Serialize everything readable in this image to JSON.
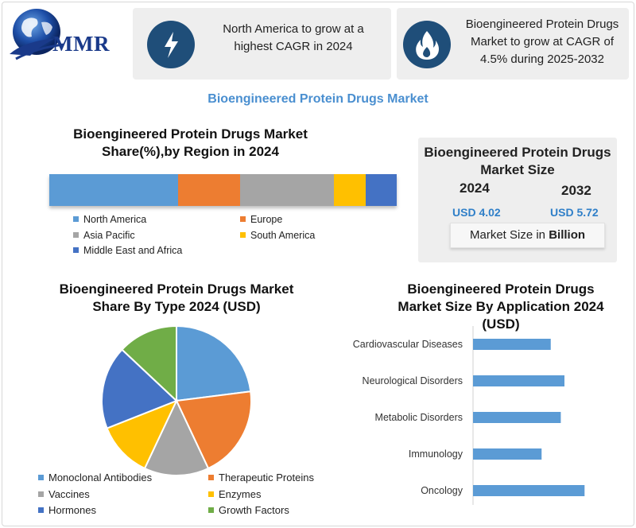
{
  "brand": {
    "logo_text": "MMR"
  },
  "header": {
    "card1_text_lines": [
      "North America to grow at a",
      "highest CAGR in 2024"
    ],
    "card2_text_lines": [
      "Bioengineered Protein Drugs",
      "Market to grow at CAGR of",
      "4.5% during 2025-2032"
    ],
    "card1_icon": "lightning-icon",
    "card2_icon": "flame-icon"
  },
  "main_title": "Bioengineered Protein Drugs Market",
  "colors": {
    "blue": "#5b9bd5",
    "orange": "#ed7d31",
    "gray": "#a5a5a5",
    "yellow": "#ffc000",
    "dark_blue": "#4472c4",
    "green": "#70ad47",
    "accent_text": "#2f7fc8",
    "icon_circle": "#1f4e79"
  },
  "region_section": {
    "title_lines": [
      "Bioengineered Protein Drugs Market",
      "Share(%),by Region in 2024"
    ]
  },
  "market_size": {
    "title_lines": [
      "Bioengineered Protein Drugs",
      "Market Size"
    ],
    "year1": "2024",
    "year2": "2032",
    "value1": "USD 4.02",
    "value2": "USD 5.72",
    "unit_prefix": "Market Size in ",
    "unit_bold": "Billion"
  },
  "type_section": {
    "title_lines": [
      "Bioengineered Protein Drugs Market",
      "Share By Type 2024  (USD)"
    ]
  },
  "application_section": {
    "title_lines": [
      "Bioengineered Protein Drugs",
      "Market Size By Application 2024",
      "(USD)"
    ]
  },
  "chart_data": [
    {
      "type": "bar",
      "orientation": "horizontal-stacked",
      "categories": [
        "North America",
        "Europe",
        "Asia Pacific",
        "South America",
        "Middle East and Africa"
      ],
      "values": [
        37,
        18,
        27,
        9,
        9
      ],
      "unit": "%",
      "legend_position": "bottom"
    },
    {
      "type": "pie",
      "labels": [
        "Monoclonal Antibodies",
        "Therapeutic Proteins",
        "Vaccines",
        "Enzymes",
        "Hormones",
        "Growth Factors"
      ],
      "values": [
        23,
        20,
        14,
        12,
        18,
        13
      ],
      "legend_position": "bottom"
    },
    {
      "type": "bar",
      "orientation": "horizontal",
      "categories": [
        "Cardiovascular Diseases",
        "Neurological Disorders",
        "Metabolic Disorders",
        "Immunology",
        "Oncology"
      ],
      "values": [
        0.85,
        1.0,
        0.96,
        0.75,
        1.22
      ],
      "grid": false
    }
  ]
}
